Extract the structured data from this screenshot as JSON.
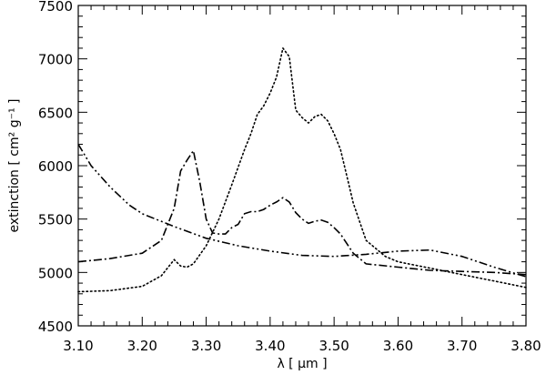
{
  "chart_data": {
    "type": "line",
    "title": "",
    "xlabel": "λ [ μm ]",
    "ylabel": "extinction [ cm² g⁻¹ ]",
    "xlim": [
      3.1,
      3.8
    ],
    "ylim": [
      4500,
      7500
    ],
    "grid": false,
    "legend": "none",
    "x_ticks": [
      "3.10",
      "3.20",
      "3.30",
      "3.40",
      "3.50",
      "3.60",
      "3.70",
      "3.80"
    ],
    "y_ticks": [
      "4500",
      "5000",
      "5500",
      "6000",
      "6500",
      "7000",
      "7500"
    ],
    "series": [
      {
        "style": "dotted",
        "x": [
          3.1,
          3.15,
          3.2,
          3.23,
          3.25,
          3.26,
          3.27,
          3.28,
          3.3,
          3.32,
          3.34,
          3.36,
          3.37,
          3.38,
          3.39,
          3.4,
          3.41,
          3.42,
          3.43,
          3.44,
          3.45,
          3.46,
          3.47,
          3.48,
          3.49,
          3.5,
          3.51,
          3.52,
          3.53,
          3.55,
          3.58,
          3.6,
          3.65,
          3.7,
          3.75,
          3.8
        ],
        "y": [
          4820,
          4830,
          4870,
          4970,
          5120,
          5060,
          5050,
          5080,
          5250,
          5500,
          5820,
          6150,
          6300,
          6480,
          6560,
          6680,
          6830,
          7100,
          7020,
          6520,
          6450,
          6400,
          6460,
          6480,
          6420,
          6300,
          6150,
          5900,
          5650,
          5300,
          5150,
          5100,
          5040,
          4980,
          4920,
          4860
        ]
      },
      {
        "style": "dash-dot",
        "x": [
          3.1,
          3.15,
          3.2,
          3.23,
          3.25,
          3.26,
          3.27,
          3.28,
          3.29,
          3.3,
          3.31,
          3.32,
          3.33,
          3.34,
          3.35,
          3.36,
          3.37,
          3.38,
          3.39,
          3.4,
          3.41,
          3.42,
          3.43,
          3.44,
          3.45,
          3.46,
          3.47,
          3.48,
          3.49,
          3.5,
          3.51,
          3.52,
          3.53,
          3.55,
          3.6,
          3.65,
          3.7,
          3.75,
          3.8
        ],
        "y": [
          5100,
          5130,
          5180,
          5300,
          5600,
          5950,
          6050,
          6140,
          5850,
          5500,
          5370,
          5360,
          5360,
          5420,
          5450,
          5550,
          5570,
          5570,
          5590,
          5630,
          5660,
          5700,
          5660,
          5560,
          5500,
          5460,
          5480,
          5490,
          5470,
          5420,
          5360,
          5270,
          5180,
          5080,
          5050,
          5020,
          5010,
          5000,
          4980
        ]
      },
      {
        "style": "dash-dot-dot",
        "x": [
          3.1,
          3.12,
          3.15,
          3.18,
          3.2,
          3.25,
          3.3,
          3.35,
          3.4,
          3.45,
          3.5,
          3.55,
          3.6,
          3.65,
          3.7,
          3.75,
          3.8
        ],
        "y": [
          6200,
          6000,
          5800,
          5630,
          5550,
          5430,
          5320,
          5250,
          5200,
          5160,
          5150,
          5170,
          5200,
          5210,
          5150,
          5050,
          4960
        ]
      }
    ]
  }
}
